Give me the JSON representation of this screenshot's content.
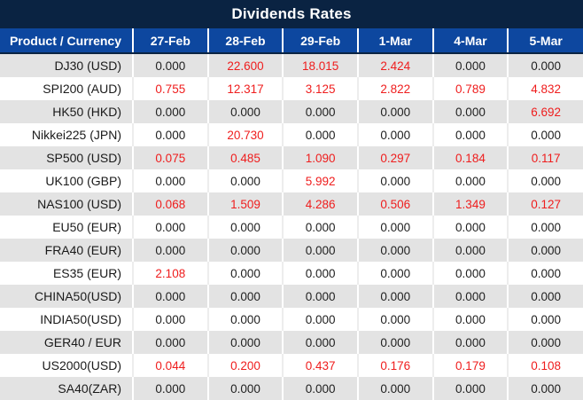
{
  "title": "Dividends Rates",
  "colors": {
    "title_bg": "#0a2342",
    "header_bg": "#0d479f",
    "header_text": "#ffffff",
    "row_alt_bg": "#e3e3e3",
    "row_bg": "#ffffff",
    "value_zero": "#212121",
    "value_nonzero": "#ef1d1d"
  },
  "chart_data": {
    "type": "table",
    "title": "Dividends Rates",
    "product_header": "Product / Currency",
    "date_headers": [
      "27-Feb",
      "28-Feb",
      "29-Feb",
      "1-Mar",
      "4-Mar",
      "5-Mar"
    ],
    "rows": [
      {
        "product": "DJ30 (USD)",
        "values": [
          "0.000",
          "22.600",
          "18.015",
          "2.424",
          "0.000",
          "0.000"
        ]
      },
      {
        "product": "SPI200 (AUD)",
        "values": [
          "0.755",
          "12.317",
          "3.125",
          "2.822",
          "0.789",
          "4.832"
        ]
      },
      {
        "product": "HK50 (HKD)",
        "values": [
          "0.000",
          "0.000",
          "0.000",
          "0.000",
          "0.000",
          "6.692"
        ]
      },
      {
        "product": "Nikkei225 (JPN)",
        "values": [
          "0.000",
          "20.730",
          "0.000",
          "0.000",
          "0.000",
          "0.000"
        ]
      },
      {
        "product": "SP500 (USD)",
        "values": [
          "0.075",
          "0.485",
          "1.090",
          "0.297",
          "0.184",
          "0.117"
        ]
      },
      {
        "product": "UK100 (GBP)",
        "values": [
          "0.000",
          "0.000",
          "5.992",
          "0.000",
          "0.000",
          "0.000"
        ]
      },
      {
        "product": "NAS100 (USD)",
        "values": [
          "0.068",
          "1.509",
          "4.286",
          "0.506",
          "1.349",
          "0.127"
        ]
      },
      {
        "product": "EU50 (EUR)",
        "values": [
          "0.000",
          "0.000",
          "0.000",
          "0.000",
          "0.000",
          "0.000"
        ]
      },
      {
        "product": "FRA40 (EUR)",
        "values": [
          "0.000",
          "0.000",
          "0.000",
          "0.000",
          "0.000",
          "0.000"
        ]
      },
      {
        "product": "ES35 (EUR)",
        "values": [
          "2.108",
          "0.000",
          "0.000",
          "0.000",
          "0.000",
          "0.000"
        ]
      },
      {
        "product": "CHINA50(USD)",
        "values": [
          "0.000",
          "0.000",
          "0.000",
          "0.000",
          "0.000",
          "0.000"
        ]
      },
      {
        "product": "INDIA50(USD)",
        "values": [
          "0.000",
          "0.000",
          "0.000",
          "0.000",
          "0.000",
          "0.000"
        ]
      },
      {
        "product": "GER40 / EUR",
        "values": [
          "0.000",
          "0.000",
          "0.000",
          "0.000",
          "0.000",
          "0.000"
        ]
      },
      {
        "product": "US2000(USD)",
        "values": [
          "0.044",
          "0.200",
          "0.437",
          "0.176",
          "0.179",
          "0.108"
        ]
      },
      {
        "product": "SA40(ZAR)",
        "values": [
          "0.000",
          "0.000",
          "0.000",
          "0.000",
          "0.000",
          "0.000"
        ]
      }
    ]
  }
}
